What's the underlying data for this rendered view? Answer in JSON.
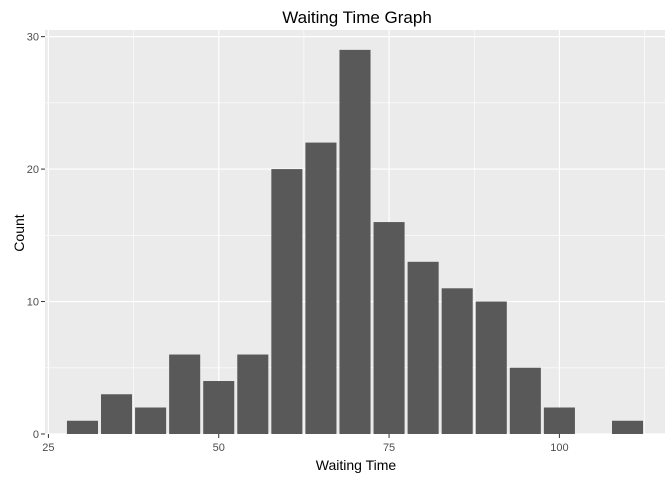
{
  "chart_data": {
    "type": "bar",
    "title": "Waiting Time Graph",
    "xlabel": "Waiting Time",
    "ylabel": "Count",
    "bin_centers": [
      30,
      35,
      40,
      45,
      50,
      55,
      60,
      65,
      70,
      75,
      80,
      85,
      90,
      95,
      100,
      105,
      110
    ],
    "values": [
      1,
      3,
      2,
      6,
      4,
      6,
      20,
      22,
      29,
      16,
      13,
      11,
      10,
      5,
      2,
      0,
      1
    ],
    "bin_width": 5,
    "xlim": [
      24.5,
      115.5
    ],
    "ylim": [
      0,
      30.5
    ],
    "x_ticks": [
      25,
      50,
      75,
      100
    ],
    "y_ticks": [
      0,
      10,
      20,
      30
    ],
    "grid": true,
    "colors": {
      "panel": "#ebebeb",
      "grid": "#ffffff",
      "bar": "#595959",
      "tick": "#333333"
    }
  }
}
